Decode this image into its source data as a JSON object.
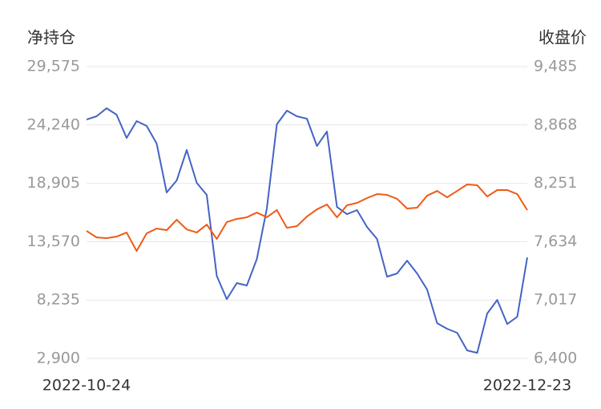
{
  "chart_data": {
    "type": "line",
    "y_label": "净持仓",
    "y2_label": "收盘价",
    "x": [
      "2022-10-24",
      null,
      null,
      null,
      null,
      null,
      null,
      null,
      null,
      null,
      null,
      null,
      null,
      null,
      null,
      null,
      null,
      null,
      null,
      null,
      null,
      null,
      null,
      null,
      null,
      null,
      null,
      null,
      null,
      null,
      null,
      null,
      null,
      null,
      null,
      null,
      null,
      null,
      null,
      null,
      null,
      null,
      null,
      null,
      "2022-12-23"
    ],
    "ylim": [
      2900,
      29575
    ],
    "yticks": [
      {
        "value": 2900,
        "label": "2,900"
      },
      {
        "value": 8235,
        "label": "8,235"
      },
      {
        "value": 13570,
        "label": "13,570"
      },
      {
        "value": 18905,
        "label": "18,905"
      },
      {
        "value": 24240,
        "label": "24,240"
      },
      {
        "value": 29575,
        "label": "29,575"
      }
    ],
    "y2lim": [
      6400,
      9485
    ],
    "y2ticks": [
      {
        "value": 6400,
        "label": "6,400"
      },
      {
        "value": 7017,
        "label": "7,017"
      },
      {
        "value": 7634,
        "label": "7,634"
      },
      {
        "value": 8251,
        "label": "8,251"
      },
      {
        "value": 8868,
        "label": "8,868"
      },
      {
        "value": 9485,
        "label": "9,485"
      }
    ],
    "grid": true,
    "series": [
      {
        "color": "#4464c4",
        "axis": "y",
        "values": [
          24737,
          25031,
          25764,
          25177,
          23052,
          24591,
          24151,
          22539,
          18069,
          19168,
          21953,
          18948,
          17849,
          10448,
          8323,
          9788,
          9568,
          11987,
          16603,
          24298,
          25544,
          25031,
          24811,
          22319,
          23638,
          16750,
          16090,
          16457,
          14918,
          13819,
          10375,
          10668,
          11840,
          10668,
          9202,
          6124,
          5611,
          5245,
          3633,
          3413,
          7004,
          8249,
          6051,
          6711,
          12133
        ]
      },
      {
        "color": "#f05a14",
        "axis": "y2",
        "values": [
          7748,
          7680,
          7671,
          7688,
          7731,
          7536,
          7722,
          7773,
          7756,
          7866,
          7764,
          7731,
          7815,
          7663,
          7841,
          7875,
          7892,
          7942,
          7892,
          7968,
          7781,
          7798,
          7900,
          7976,
          8027,
          7892,
          8019,
          8044,
          8095,
          8137,
          8129,
          8087,
          7985,
          7993,
          8120,
          8171,
          8103,
          8171,
          8239,
          8231,
          8112,
          8180,
          8180,
          8137,
          7968
        ]
      }
    ]
  }
}
